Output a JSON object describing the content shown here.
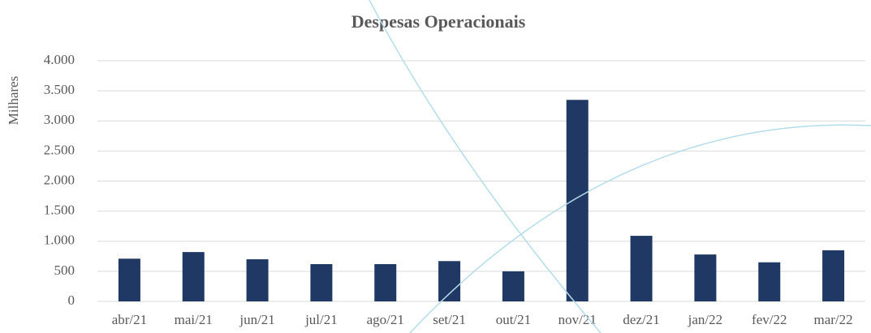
{
  "chart_data": {
    "type": "bar",
    "title": "Despesas Operacionais",
    "y_axis_label": "Milhares",
    "categories": [
      "abr/21",
      "mai/21",
      "jun/21",
      "jul/21",
      "ago/21",
      "set/21",
      "out/21",
      "nov/21",
      "dez/21",
      "jan/22",
      "fev/22",
      "mar/22"
    ],
    "values": [
      710,
      820,
      700,
      620,
      620,
      670,
      500,
      3350,
      1090,
      780,
      650,
      850
    ],
    "color": "#1f3864",
    "ylim": [
      0,
      4000
    ],
    "yticks": [
      0,
      500,
      {
        "value": 1000,
        "label": "1.000"
      },
      {
        "value": 1500,
        "label": "1.500"
      },
      {
        "value": 2000,
        "label": "2.000"
      },
      {
        "value": 2500,
        "label": "2.500"
      },
      {
        "value": 3000,
        "label": "3.000"
      },
      {
        "value": 3500,
        "label": "3.500"
      },
      {
        "value": 4000,
        "label": "4.000"
      }
    ],
    "grid": true
  }
}
